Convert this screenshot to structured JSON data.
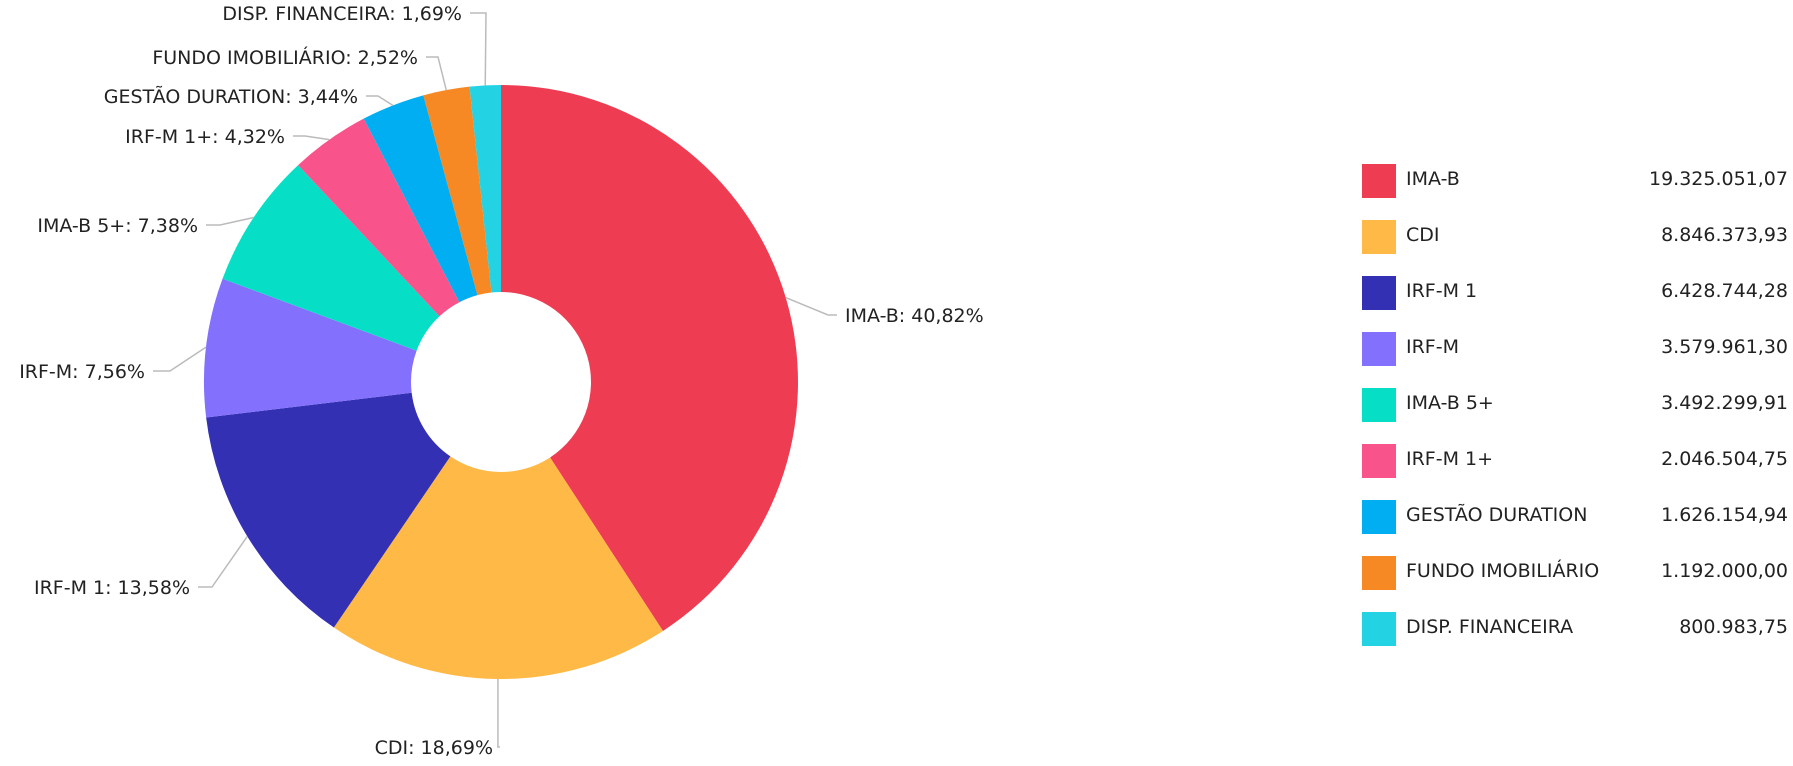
{
  "chart_data": {
    "type": "pie",
    "variant": "donut",
    "title": "",
    "categories": [
      "IMA-B",
      "CDI",
      "IRF-M 1",
      "IRF-M",
      "IMA-B 5+",
      "IRF-M 1+",
      "GESTÃO DURATION",
      "FUNDO IMOBILIÁRIO",
      "DISP. FINANCEIRA"
    ],
    "percentages": [
      40.82,
      18.69,
      13.58,
      7.56,
      7.38,
      4.32,
      3.44,
      2.52,
      1.69
    ],
    "percent_labels": [
      "40,82%",
      "18,69%",
      "13,58%",
      "7,56%",
      "7,38%",
      "4,32%",
      "3,44%",
      "2,52%",
      "1,69%"
    ],
    "values": [
      19325051.07,
      8846373.93,
      6428744.28,
      3579961.3,
      3492299.91,
      2046504.75,
      1626154.94,
      1192000.0,
      800983.75
    ],
    "value_labels": [
      "19.325.051,07",
      "8.846.373,93",
      "6.428.744,28",
      "3.579.961,30",
      "3.492.299,91",
      "2.046.504,75",
      "1.626.154,94",
      "1.192.000,00",
      "800.983,75"
    ],
    "colors": [
      "#ee3d52",
      "#ffb946",
      "#3330b4",
      "#8370fc",
      "#06dfc6",
      "#f8548b",
      "#02aef2",
      "#f68924",
      "#24d3e3"
    ],
    "legend_position": "right",
    "start_angle": "top, clockwise"
  }
}
